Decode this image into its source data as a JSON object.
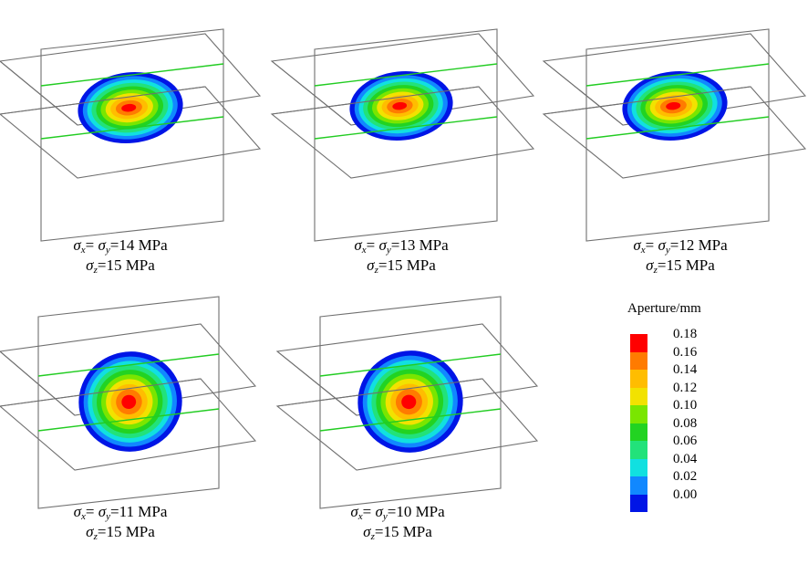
{
  "panels": [
    {
      "id": "p1",
      "stress_xy": "14",
      "stress_z": "15",
      "unit": "MPa",
      "shape": "flattened"
    },
    {
      "id": "p2",
      "stress_xy": "13",
      "stress_z": "15",
      "unit": "MPa",
      "shape": "flattened"
    },
    {
      "id": "p3",
      "stress_xy": "12",
      "stress_z": "15",
      "unit": "MPa",
      "shape": "flattened"
    },
    {
      "id": "p4",
      "stress_xy": "11",
      "stress_z": "15",
      "unit": "MPa",
      "shape": "round"
    },
    {
      "id": "p5",
      "stress_xy": "10",
      "stress_z": "15",
      "unit": "MPa",
      "shape": "round"
    }
  ],
  "caption_symbols": {
    "sigma": "σ",
    "x": "x",
    "y": "y",
    "z": "z",
    "eq": "=",
    "eq_spaced": "= "
  },
  "legend": {
    "title": "Aperture/mm",
    "ticks": [
      "0.18",
      "0.16",
      "0.14",
      "0.12",
      "0.10",
      "0.08",
      "0.06",
      "0.04",
      "0.02",
      "0.00"
    ],
    "colors": [
      "#ff0000",
      "#ff7b00",
      "#ffbd00",
      "#f2e200",
      "#7ae600",
      "#22d322",
      "#22e27a",
      "#11e0e0",
      "#1188ff",
      "#0015e6"
    ]
  },
  "colors": {
    "frame": "#707070",
    "intersection_line": "#22cc22"
  }
}
